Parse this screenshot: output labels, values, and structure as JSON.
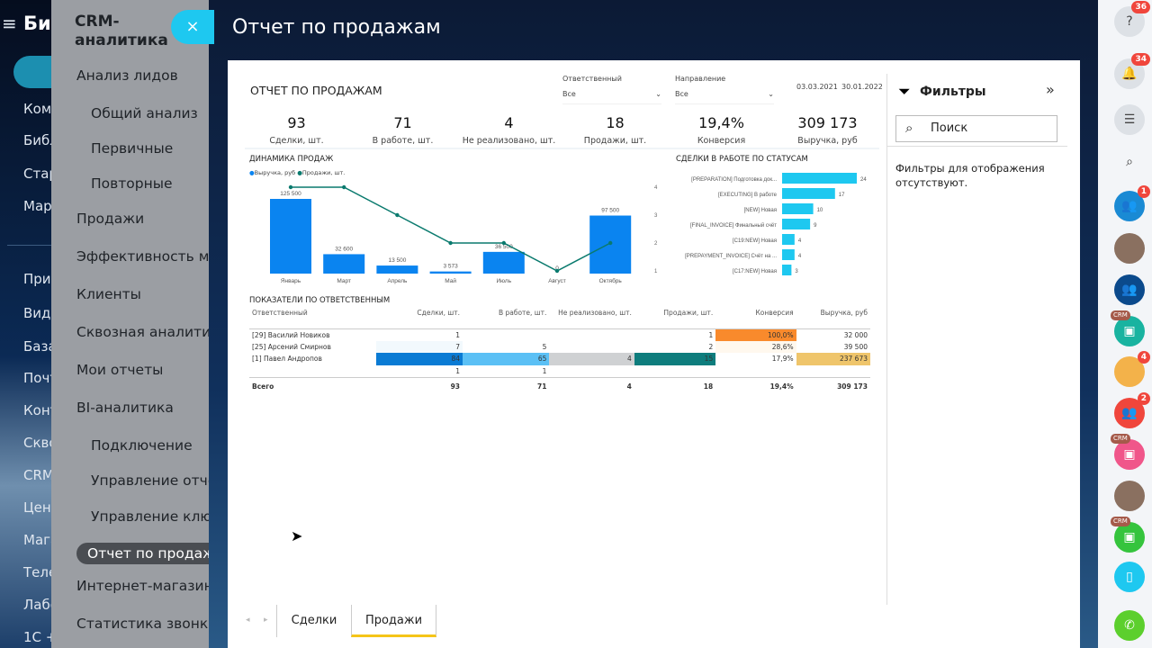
{
  "left_nav": {
    "brand": "Би",
    "items": [
      "Ком",
      "Библ",
      "Стар",
      "Мар",
      "При",
      "Виде",
      "База",
      "Почт",
      "Конт",
      "Скво",
      "CRM",
      "Цент",
      "Мага",
      "Теле",
      "Лабо",
      "1С +"
    ]
  },
  "crm_menu": {
    "title": "CRM-аналитика",
    "items": [
      {
        "label": "Анализ лидов",
        "level": 0
      },
      {
        "label": "Общий анализ",
        "level": 1
      },
      {
        "label": "Первичные",
        "level": 1
      },
      {
        "label": "Повторные",
        "level": 1
      },
      {
        "label": "Продажи",
        "level": 0
      },
      {
        "label": "Эффективность менеджеров",
        "level": 0
      },
      {
        "label": "Клиенты",
        "level": 0
      },
      {
        "label": "Сквозная аналитика",
        "level": 0
      },
      {
        "label": "Мои отчеты",
        "level": 0
      },
      {
        "label": "BI-аналитика",
        "level": 0
      },
      {
        "label": "Подключение",
        "level": 1
      },
      {
        "label": "Управление отчётами",
        "level": 1
      },
      {
        "label": "Управление ключами",
        "level": 1
      },
      {
        "label": "Отчет по продажам",
        "level": 0,
        "active": true
      },
      {
        "label": "Интернет-магазин",
        "level": 0
      },
      {
        "label": "Статистика звонков",
        "level": 0
      }
    ]
  },
  "slider": {
    "title": "Отчет по продажам",
    "close_icon": "×"
  },
  "report": {
    "title": "ОТЧЕТ ПО ПРОДАЖАМ",
    "filter_responsible": {
      "label": "Ответственный",
      "value": "Все"
    },
    "filter_direction": {
      "label": "Направление",
      "value": "Все"
    },
    "date_from": "03.03.2021",
    "date_to": "30.01.2022",
    "kpis": [
      {
        "value": "93",
        "label": "Сделки, шт."
      },
      {
        "value": "71",
        "label": "В работе, шт."
      },
      {
        "value": "4",
        "label": "Не реализовано, шт."
      },
      {
        "value": "18",
        "label": "Продажи, шт."
      },
      {
        "value": "19,4%",
        "label": "Конверсия"
      },
      {
        "value": "309 173",
        "label": "Выручка, руб"
      }
    ],
    "table": {
      "title": "ПОКАЗАТЕЛИ ПО ОТВЕТСТВЕННЫМ",
      "headers": [
        "Ответственный",
        "Сделки, шт.",
        "В работе, шт.",
        "Не реализовано, шт.",
        "Продажи, шт.",
        "Конверсия",
        "Выручка, руб"
      ],
      "rows": [
        [
          "[29] Василий Новиков",
          "1",
          "",
          "",
          "1",
          "100,0%",
          "32 000"
        ],
        [
          "[25] Арсений Смирнов",
          "7",
          "5",
          "",
          "2",
          "28,6%",
          "39 500"
        ],
        [
          "[1] Павел Андропов",
          "84",
          "65",
          "4",
          "15",
          "17,9%",
          "237 673"
        ],
        [
          "",
          "1",
          "1",
          "",
          "",
          "",
          ""
        ]
      ],
      "total": [
        "Всего",
        "93",
        "71",
        "4",
        "18",
        "19,4%",
        "309 173"
      ]
    }
  },
  "chart_data": [
    {
      "type": "bar+line",
      "title": "ДИНАМИКА ПРОДАЖ",
      "categories": [
        "Январь",
        "Март",
        "Апрель",
        "Май",
        "Июль",
        "Август",
        "Октябрь"
      ],
      "series": [
        {
          "name": "Выручка, руб",
          "type": "bar",
          "color": "#0a84f0",
          "values": [
            125500,
            32600,
            13500,
            3573,
            36500,
            0,
            97500
          ],
          "labels": [
            "125 500",
            "32 600",
            "13 500",
            "3 573",
            "36 500",
            "0",
            "97 500"
          ]
        },
        {
          "name": "Продажи, шт.",
          "type": "line",
          "color": "#0a7a6e",
          "axis": "right",
          "values": [
            4,
            4,
            3,
            2,
            2,
            1,
            2
          ]
        }
      ],
      "y2_ticks": [
        "1",
        "2",
        "3",
        "4"
      ],
      "y2lim": [
        1,
        4
      ]
    },
    {
      "type": "bar",
      "orientation": "horizontal",
      "title": "СДЕЛКИ В РАБОТЕ ПО СТАТУСАМ",
      "color": "#1ec8f0",
      "categories": [
        "[PREPARATION] Подготовка док...",
        "[EXECUTING] В работе",
        "[NEW] Новая",
        "[FINAL_INVOICE] Финальный счёт",
        "[C19:NEW] Новая",
        "[PREPAYMENT_INVOICE] Счёт на ...",
        "[C17:NEW] Новая"
      ],
      "values": [
        24,
        17,
        10,
        9,
        4,
        4,
        3
      ]
    }
  ],
  "filters": {
    "title": "Фильтры",
    "search_placeholder": "Поиск",
    "empty_text": "Фильтры для отображения отсутствуют."
  },
  "tabs": [
    {
      "label": "Сделки"
    },
    {
      "label": "Продажи",
      "active": true
    }
  ],
  "right_bar": [
    {
      "icon": "help-icon",
      "badge": "36"
    },
    {
      "icon": "bell-icon",
      "badge": "34"
    },
    {
      "icon": "chat-icon"
    },
    {
      "icon": "search-icon"
    },
    {
      "icon": "group-icon",
      "badge": "1"
    },
    {
      "icon": "avatar"
    },
    {
      "icon": "group-chat-icon"
    },
    {
      "icon": "crm-icon",
      "tag": "CRM"
    },
    {
      "icon": "avatar",
      "badge": "4"
    },
    {
      "icon": "group-icon",
      "badge": "2"
    },
    {
      "icon": "crm-icon",
      "tag": "CRM"
    },
    {
      "icon": "avatar"
    },
    {
      "icon": "crm-icon",
      "tag": "CRM"
    },
    {
      "icon": "device-icon"
    },
    {
      "icon": "phone-icon"
    }
  ],
  "colors": {
    "accent": "#1ec8f0",
    "bar": "#0a84f0",
    "line": "#0a7a6e",
    "tab_underline": "#f5c518",
    "badge": "#f0463c"
  }
}
